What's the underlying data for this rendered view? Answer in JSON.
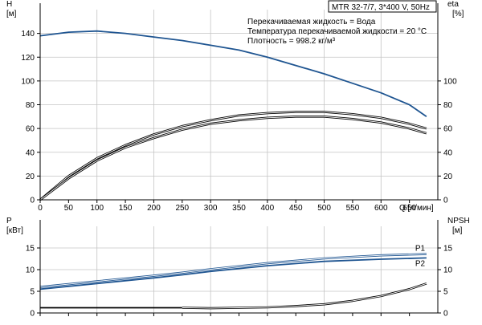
{
  "info_box": "MTR 32-7/7, 3*400 V, 50Hz",
  "notes": [
    "Перекачиваемая жидкость = Вода",
    "Температура перекачиваемой жидкости = 20 °C",
    "Плотность = 998.2 кг/м³"
  ],
  "colors": {
    "blue": "#1f5591",
    "black": "#000000",
    "grid": "#c4c4c4"
  },
  "chart_data": [
    {
      "type": "line",
      "panel": "top",
      "x_axis": {
        "label": "Q [л/мин]",
        "range": [
          0,
          700
        ],
        "ticks": [
          0,
          50,
          100,
          150,
          200,
          250,
          300,
          350,
          400,
          450,
          500,
          550,
          600,
          650
        ]
      },
      "y_axis_left": {
        "label_line1": "H",
        "label_line2": "[м]",
        "range": [
          0,
          160
        ],
        "ticks": [
          0,
          20,
          40,
          60,
          80,
          100,
          120,
          140
        ]
      },
      "y_axis_right": {
        "label_line1": "eta",
        "label_line2": "[%]",
        "range": [
          0,
          160
        ],
        "ticks": [
          0,
          20,
          40,
          60,
          80,
          100
        ]
      },
      "grid": true,
      "series": [
        {
          "id": "head",
          "axis": "left",
          "color": "#1f5591",
          "double": false,
          "x": [
            0,
            50,
            100,
            150,
            200,
            250,
            300,
            350,
            400,
            450,
            500,
            550,
            600,
            650,
            680
          ],
          "y": [
            138,
            141,
            142,
            140,
            137,
            134,
            130,
            126,
            120,
            113,
            106,
            98,
            90,
            80,
            70
          ]
        },
        {
          "id": "efficiency-1",
          "axis": "right",
          "color": "#000000",
          "double": true,
          "x": [
            0,
            50,
            100,
            150,
            200,
            250,
            300,
            350,
            400,
            450,
            500,
            550,
            600,
            650,
            680
          ],
          "y": [
            0,
            20,
            35,
            46,
            55,
            62,
            67,
            71,
            73,
            74,
            74,
            72,
            69,
            64,
            60
          ]
        },
        {
          "id": "efficiency-2",
          "axis": "right",
          "color": "#000000",
          "double": true,
          "x": [
            0,
            50,
            100,
            150,
            200,
            250,
            300,
            350,
            400,
            450,
            500,
            550,
            600,
            650,
            680
          ],
          "y": [
            0,
            18,
            33,
            44,
            52,
            59,
            64,
            67,
            69,
            70,
            70,
            68,
            65,
            60,
            56
          ]
        }
      ]
    },
    {
      "type": "line",
      "panel": "bottom",
      "x_axis": {
        "range": [
          0,
          700
        ]
      },
      "y_axis_left": {
        "label_line1": "P",
        "label_line2": "[кВт]",
        "range": [
          0,
          20
        ],
        "ticks": [
          0,
          5,
          10,
          15
        ]
      },
      "y_axis_right": {
        "label_line1": "NPSH",
        "label_line2": "[м]",
        "range": [
          0,
          20
        ],
        "ticks": [
          0,
          5,
          10,
          15
        ]
      },
      "grid": true,
      "series": [
        {
          "id": "p1",
          "name": "P1",
          "axis": "left",
          "color": "#1f5591",
          "double": true,
          "x": [
            0,
            100,
            200,
            250,
            300,
            400,
            500,
            600,
            680
          ],
          "y": [
            6.0,
            7.3,
            8.6,
            9.3,
            10.1,
            11.5,
            12.6,
            13.3,
            13.6
          ]
        },
        {
          "id": "p2",
          "name": "P2",
          "axis": "left",
          "color": "#1f5591",
          "double": false,
          "x": [
            0,
            100,
            200,
            250,
            300,
            400,
            500,
            600,
            680
          ],
          "y": [
            5.5,
            6.8,
            8.1,
            8.8,
            9.6,
            10.9,
            11.9,
            12.4,
            12.7
          ]
        },
        {
          "id": "npsh-flat",
          "axis": "right",
          "color": "#000000",
          "double": false,
          "x": [
            0,
            250
          ],
          "y": [
            1.2,
            1.2
          ]
        },
        {
          "id": "npsh",
          "axis": "right",
          "color": "#000000",
          "double": true,
          "x": [
            250,
            300,
            350,
            400,
            450,
            500,
            550,
            600,
            650,
            680
          ],
          "y": [
            1.2,
            1.1,
            1.2,
            1.3,
            1.6,
            2.0,
            2.8,
            3.9,
            5.5,
            6.8
          ]
        }
      ]
    }
  ]
}
